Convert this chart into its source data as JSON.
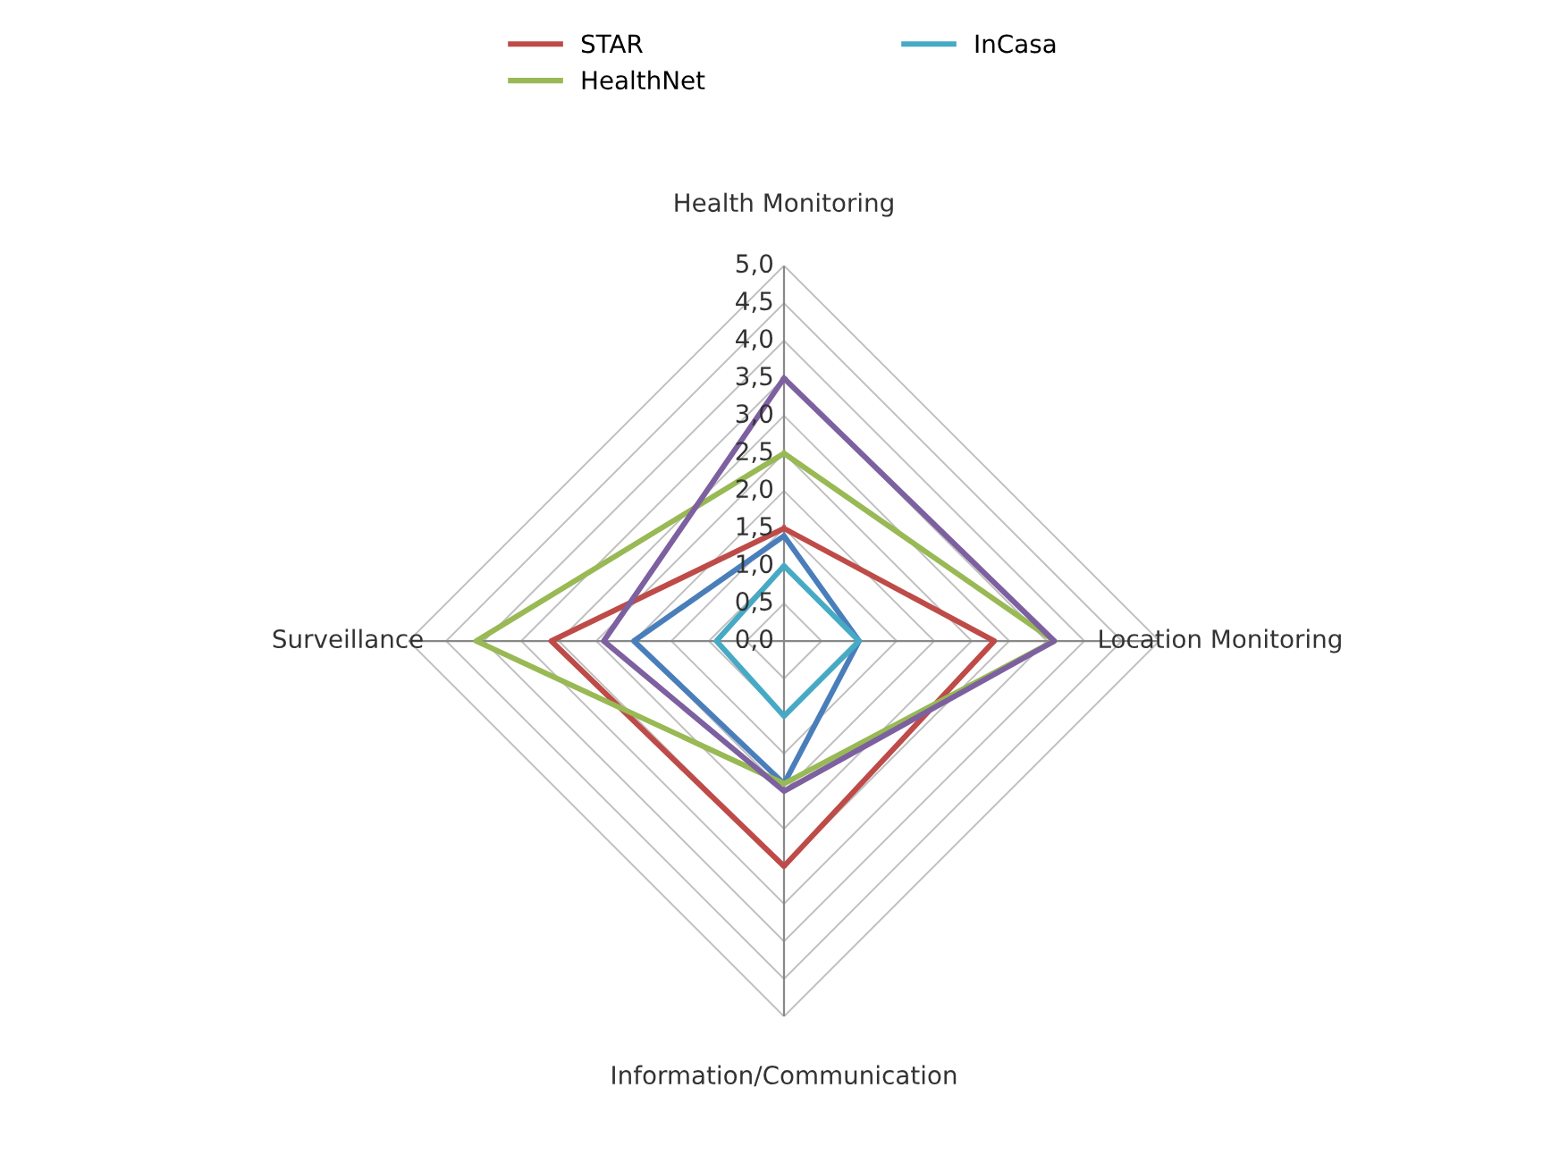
{
  "chart_data": {
    "type": "radar",
    "categories": [
      "Health Monitoring",
      "Location Monitoring",
      "Information/Communication",
      "Surveillance"
    ],
    "series": [
      {
        "color": "#4a7ebb",
        "values": [
          1.4,
          1.0,
          1.9,
          2.0
        ]
      },
      {
        "name": "STAR",
        "color": "#be4b48",
        "values": [
          1.5,
          2.8,
          3.0,
          3.1
        ]
      },
      {
        "name": "HealthNet",
        "color": "#98b954",
        "values": [
          2.5,
          3.6,
          1.9,
          4.1
        ]
      },
      {
        "color": "#7d60a0",
        "values": [
          3.5,
          3.6,
          2.0,
          2.4
        ]
      },
      {
        "name": "InCasa",
        "color": "#46aac5",
        "values": [
          1.0,
          1.0,
          1.0,
          0.9
        ]
      }
    ],
    "ylim": [
      0,
      5
    ],
    "yticks": [
      {
        "value": 0,
        "label": "0,0"
      },
      {
        "value": 0.5,
        "label": "0,5"
      },
      {
        "value": 1,
        "label": "1,0"
      },
      {
        "value": 1.5,
        "label": "1,5"
      },
      {
        "value": 2,
        "label": "2,0"
      },
      {
        "value": 2.5,
        "label": "2,5"
      },
      {
        "value": 3,
        "label": "3,0"
      },
      {
        "value": 3.5,
        "label": "3,5"
      },
      {
        "value": 4,
        "label": "4,0"
      },
      {
        "value": 4.5,
        "label": "4,5"
      },
      {
        "value": 5,
        "label": "5,0"
      }
    ],
    "grid": true,
    "legend": "top",
    "marker": "none",
    "line_style": "solid"
  }
}
